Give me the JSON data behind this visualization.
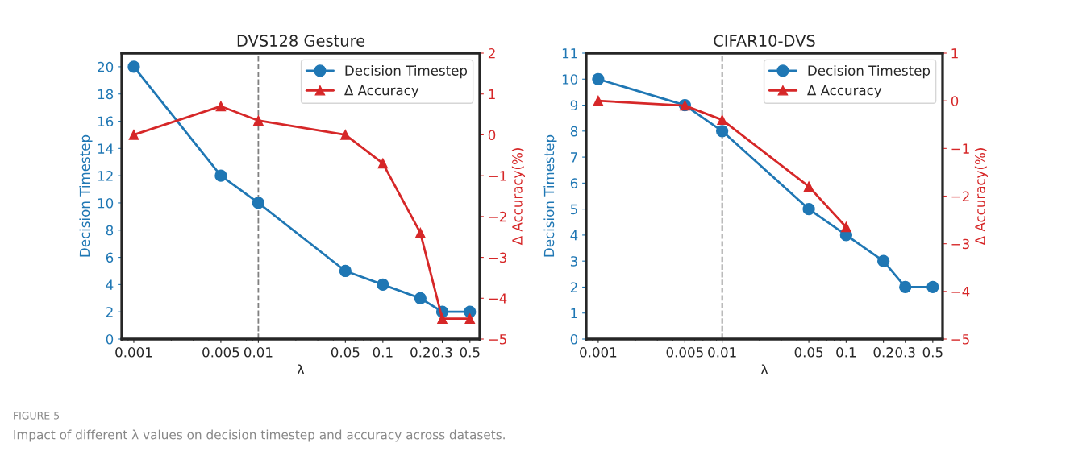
{
  "chart_data": [
    {
      "type": "line",
      "title": "DVS128 Gesture",
      "xlabel": "λ",
      "ylabel": "Decision Timestep",
      "y2label": "Δ Accuracy(%)",
      "x": [
        0.001,
        0.005,
        0.01,
        0.05,
        0.1,
        0.2,
        0.3,
        0.5
      ],
      "log": "x",
      "xlim": [
        0.0008,
        0.6
      ],
      "xticks": [
        0.001,
        0.005,
        0.01,
        0.05,
        0.1,
        0.2,
        0.3,
        0.5
      ],
      "ylim": [
        0,
        21
      ],
      "yticks": [
        0,
        2,
        4,
        6,
        8,
        10,
        12,
        14,
        16,
        18,
        20
      ],
      "y2lim": [
        -5,
        2
      ],
      "y2ticks": [
        {
          "value": -5,
          "label": "−5"
        },
        {
          "value": -4,
          "label": "−4"
        },
        {
          "value": -3,
          "label": "−3"
        },
        {
          "value": -2,
          "label": "−2"
        },
        {
          "value": -1,
          "label": "−1"
        },
        0,
        1,
        2
      ],
      "series": [
        {
          "name": "Decision Timestep",
          "color": "#1f77b4",
          "marker": "circle",
          "values": [
            20,
            12,
            10,
            5,
            4,
            3,
            2,
            2
          ]
        },
        {
          "name": "Δ Accuracy",
          "color": "#d62728",
          "marker": "triangle",
          "axis": "y2",
          "values": [
            0,
            0.7,
            0.35,
            0,
            -0.7,
            -2.4,
            -4.5,
            -4.5
          ]
        }
      ],
      "ref_lines": [
        {
          "axis": "x",
          "value": 0.01,
          "color": "#808080",
          "line_style": "dashed"
        }
      ],
      "legend": "top right",
      "grid": false
    },
    {
      "type": "line",
      "title": "CIFAR10-DVS",
      "xlabel": "λ",
      "ylabel": "Decision Timestep",
      "y2label": "Δ Accuracy(%)",
      "x": [
        0.001,
        0.005,
        0.01,
        0.05,
        0.1,
        0.2,
        0.3,
        0.5
      ],
      "log": "x",
      "xlim": [
        0.0008,
        0.6
      ],
      "xticks": [
        0.001,
        0.005,
        0.01,
        0.05,
        0.1,
        0.2,
        0.3,
        0.5
      ],
      "ylim": [
        0,
        11
      ],
      "yticks": [
        0,
        1,
        2,
        3,
        4,
        5,
        6,
        7,
        8,
        9,
        10,
        11
      ],
      "y2lim": [
        -5,
        1
      ],
      "y2ticks": [
        {
          "value": -5,
          "label": "−5"
        },
        {
          "value": -4,
          "label": "−4"
        },
        {
          "value": -3,
          "label": "−3"
        },
        {
          "value": -2,
          "label": "−2"
        },
        {
          "value": -1,
          "label": "−1"
        },
        0,
        1
      ],
      "series": [
        {
          "name": "Decision Timestep",
          "color": "#1f77b4",
          "marker": "circle",
          "values": [
            10,
            9,
            8,
            5,
            4,
            3,
            2,
            2
          ]
        },
        {
          "name": "Δ Accuracy",
          "color": "#d62728",
          "marker": "triangle",
          "axis": "y2",
          "values": [
            0,
            -0.1,
            -0.4,
            -1.8,
            -2.65,
            null,
            null,
            null
          ]
        }
      ],
      "ref_lines": [
        {
          "axis": "x",
          "value": 0.01,
          "color": "#808080",
          "line_style": "dashed"
        }
      ],
      "legend": "top right",
      "grid": false,
      "annotations": [
        "FIGURE 5",
        "Impact of different λ values on decision timestep and accuracy across datasets."
      ]
    }
  ]
}
